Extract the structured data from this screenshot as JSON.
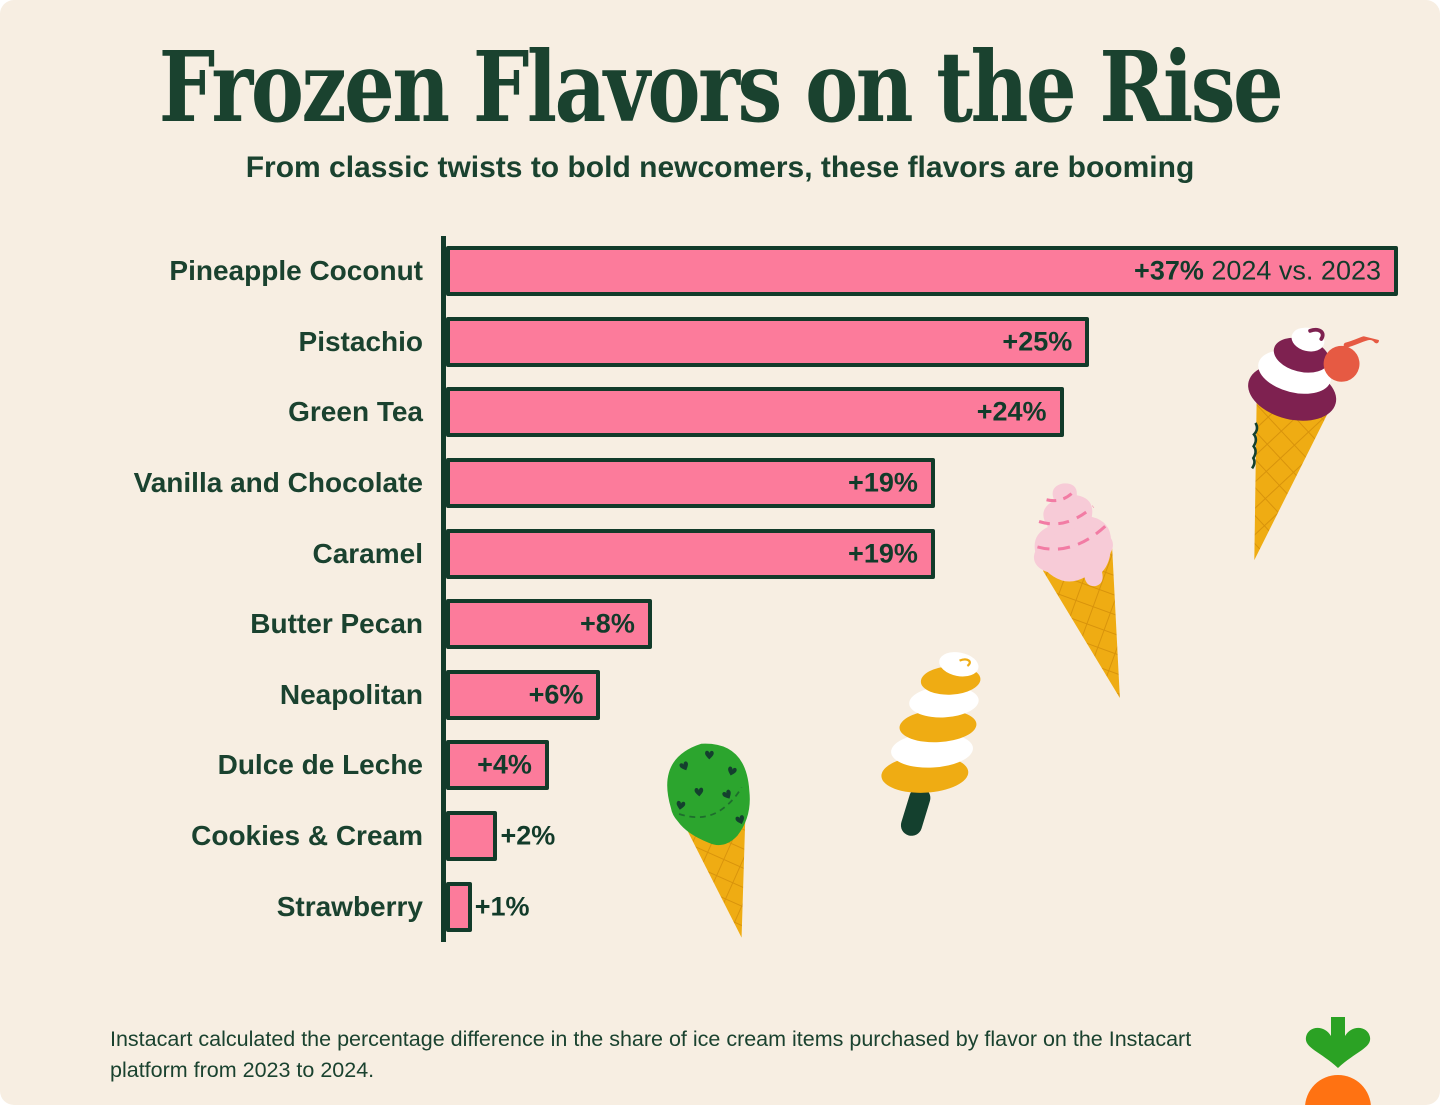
{
  "page": {
    "title": "Frozen Flavors on the Rise",
    "subtitle": "From classic twists to bold newcomers, these flavors are booming",
    "footnote": "Instacart calculated the percentage difference in the share of ice cream items purchased by flavor on the Instacart platform from 2023 to 2024."
  },
  "colors": {
    "background": "#F7EEE2",
    "text_green": "#1A422F",
    "bar_fill": "#FC7B9B",
    "bar_border": "#123B2A",
    "cone_yellow": "#EFAC13",
    "waffle_line": "#D8930B",
    "maroon": "#7E2150",
    "cherry_red": "#E65A43",
    "soft_pink": "#F7CBD7",
    "soft_pink_line": "#F27CA4",
    "mint_green": "#2CA52E",
    "dark_leaf": "#14402E",
    "logo_green": "#2BA224",
    "carrot_orange": "#FF7212"
  },
  "chart_data": {
    "type": "bar",
    "orientation": "horizontal",
    "title": "Frozen Flavors on the Rise",
    "subtitle": "From classic twists to bold newcomers, these flavors are booming",
    "unit": "percent change in share of ice cream items purchased, 2024 vs. 2023",
    "xlabel": "",
    "ylabel": "",
    "xlim": [
      0,
      37
    ],
    "grid": false,
    "max_value": 37,
    "categories": [
      "Pineapple Coconut",
      "Pistachio",
      "Green Tea",
      "Vanilla and Chocolate",
      "Caramel",
      "Butter Pecan",
      "Neapolitan",
      "Dulce de Leche",
      "Cookies & Cream",
      "Strawberry"
    ],
    "values": [
      37,
      25,
      24,
      19,
      19,
      8,
      6,
      4,
      2,
      1
    ],
    "rows": [
      {
        "label": "Pineapple Coconut",
        "value": 37,
        "display": "+37%",
        "suffix": " 2024 vs. 2023",
        "value_position": "inside"
      },
      {
        "label": "Pistachio",
        "value": 25,
        "display": "+25%",
        "suffix": "",
        "value_position": "inside"
      },
      {
        "label": "Green Tea",
        "value": 24,
        "display": "+24%",
        "suffix": "",
        "value_position": "inside"
      },
      {
        "label": "Vanilla and Chocolate",
        "value": 19,
        "display": "+19%",
        "suffix": "",
        "value_position": "inside"
      },
      {
        "label": "Caramel",
        "value": 19,
        "display": "+19%",
        "suffix": "",
        "value_position": "inside"
      },
      {
        "label": "Butter Pecan",
        "value": 8,
        "display": "+8%",
        "suffix": "",
        "value_position": "inside"
      },
      {
        "label": "Neapolitan",
        "value": 6,
        "display": "+6%",
        "suffix": "",
        "value_position": "inside"
      },
      {
        "label": "Dulce de Leche",
        "value": 4,
        "display": "+4%",
        "suffix": "",
        "value_position": "inside"
      },
      {
        "label": "Cookies & Cream",
        "value": 2,
        "display": "+2%",
        "suffix": "",
        "value_position": "outside"
      },
      {
        "label": "Strawberry",
        "value": 1,
        "display": "+1%",
        "suffix": "",
        "value_position": "outside"
      }
    ]
  },
  "illustrations": [
    "cherry-swirl-cone",
    "pink-soft-serve-cone",
    "twist-popsicle",
    "mint-chip-heart-cone",
    "instacart-carrot-logo"
  ]
}
